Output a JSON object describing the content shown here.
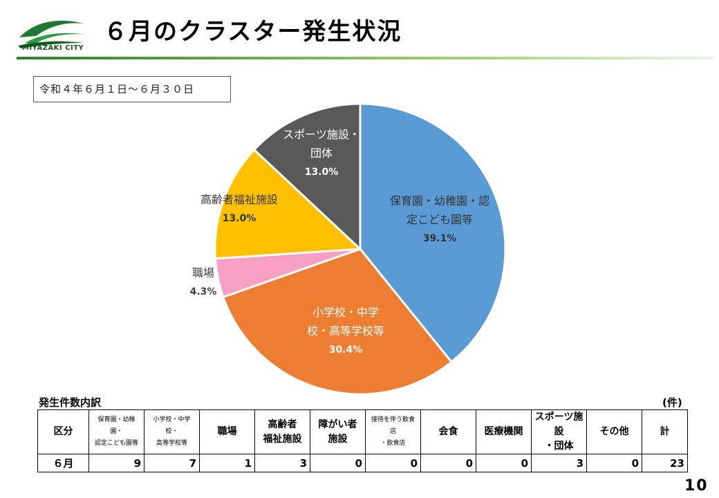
{
  "header": {
    "logo_text": "MIYAZAKI CITY",
    "title": "６月のクラスター発生状況"
  },
  "period": "令和４年６月１日～６月３０日",
  "chart_data": {
    "type": "pie",
    "slices": [
      {
        "lines": [
          "保育園・幼稚園・認",
          "定こども園等"
        ],
        "percent_label": "39.1%",
        "value": 39.1,
        "color": "#5B9BD5",
        "label_color": "#333333"
      },
      {
        "lines": [
          "小学校・中学",
          "校・高等学校等"
        ],
        "percent_label": "30.4%",
        "value": 30.4,
        "color": "#ED7D31",
        "label_color": "#ffffff"
      },
      {
        "lines": [
          "職場"
        ],
        "percent_label": "4.3%",
        "value": 4.3,
        "color": "#F8A0C3",
        "label_color": "#444444"
      },
      {
        "lines": [
          "高齢者福祉施設"
        ],
        "percent_label": "13.0%",
        "value": 13.0,
        "color": "#FFC000",
        "label_color": "#333333"
      },
      {
        "lines": [
          "スポーツ施設・",
          "団体"
        ],
        "percent_label": "13.0%",
        "value": 13.0,
        "color": "#595959",
        "label_color": "#ffffff"
      }
    ]
  },
  "table": {
    "caption": "発生件数内訳",
    "unit": "(件)",
    "headers": [
      {
        "text": "区分",
        "small": false
      },
      {
        "text": "保育園・幼稚園・\n認定こども園等",
        "small": true
      },
      {
        "text": "小学校・中学校・\n高等学校等",
        "small": true
      },
      {
        "text": "職場",
        "small": false
      },
      {
        "text": "高齢者\n福祉施設",
        "small": false
      },
      {
        "text": "障がい者\n施設",
        "small": false
      },
      {
        "text": "接待を伴う飲食店\n・飲食店",
        "small": true
      },
      {
        "text": "会食",
        "small": false
      },
      {
        "text": "医療機関",
        "small": false
      },
      {
        "text": "スポーツ施設\n・団体",
        "small": false
      },
      {
        "text": "その他",
        "small": false
      },
      {
        "text": "計",
        "small": false
      }
    ],
    "row": {
      "label": "６月",
      "values": [
        "9",
        "7",
        "1",
        "3",
        "0",
        "0",
        "0",
        "0",
        "3",
        "0",
        "23"
      ]
    }
  },
  "page_number": "10"
}
